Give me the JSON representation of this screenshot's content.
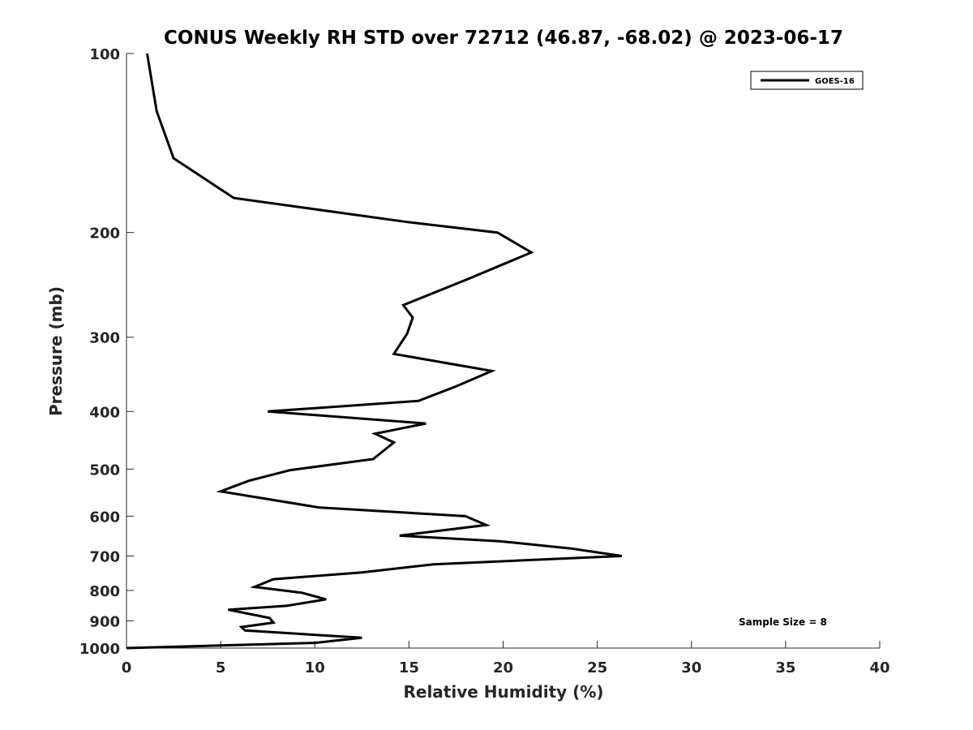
{
  "chart_data": {
    "type": "line",
    "title": "CONUS Weekly RH STD over 72712 (46.87, -68.02) @ 2023-06-17",
    "xlabel": "Relative Humidity (%)",
    "ylabel": "Pressure (mb)",
    "xlim": [
      0,
      40
    ],
    "ylim": [
      1000,
      100
    ],
    "y_scale": "log",
    "y_reversed": true,
    "x_ticks": [
      0,
      5,
      10,
      15,
      20,
      25,
      30,
      35,
      40
    ],
    "y_ticks": [
      100,
      200,
      300,
      400,
      500,
      600,
      700,
      800,
      900,
      1000
    ],
    "grid": false,
    "legend_position": "top-right",
    "series": [
      {
        "name": "GOES-16",
        "color": "#000000",
        "points": [
          [
            1.1,
            100
          ],
          [
            1.6,
            125
          ],
          [
            2.5,
            150
          ],
          [
            5.7,
            175
          ],
          [
            14.9,
            192
          ],
          [
            19.7,
            200
          ],
          [
            21.5,
            216
          ],
          [
            18.2,
            239
          ],
          [
            14.7,
            265
          ],
          [
            15.2,
            278
          ],
          [
            14.9,
            296
          ],
          [
            14.2,
            320
          ],
          [
            19.4,
            342
          ],
          [
            17.5,
            363
          ],
          [
            15.5,
            384
          ],
          [
            7.5,
            400
          ],
          [
            15.9,
            419
          ],
          [
            13.2,
            436
          ],
          [
            14.2,
            451
          ],
          [
            13.1,
            481
          ],
          [
            8.7,
            502
          ],
          [
            6.5,
            523
          ],
          [
            5.0,
            545
          ],
          [
            10.2,
            580
          ],
          [
            18.0,
            600
          ],
          [
            19.1,
            621
          ],
          [
            14.5,
            647
          ],
          [
            19.8,
            661
          ],
          [
            23.6,
            680
          ],
          [
            26.3,
            700
          ],
          [
            16.3,
            723
          ],
          [
            12.5,
            746
          ],
          [
            7.8,
            766
          ],
          [
            6.8,
            789
          ],
          [
            9.3,
            807
          ],
          [
            10.6,
            828
          ],
          [
            8.5,
            849
          ],
          [
            5.4,
            862
          ],
          [
            7.6,
            890
          ],
          [
            7.8,
            906
          ],
          [
            6.1,
            922
          ],
          [
            6.3,
            934
          ],
          [
            12.5,
            961
          ],
          [
            10.0,
            980
          ],
          [
            0.0,
            1000
          ]
        ]
      }
    ],
    "annotations": [
      "Sample Size = 8"
    ]
  }
}
